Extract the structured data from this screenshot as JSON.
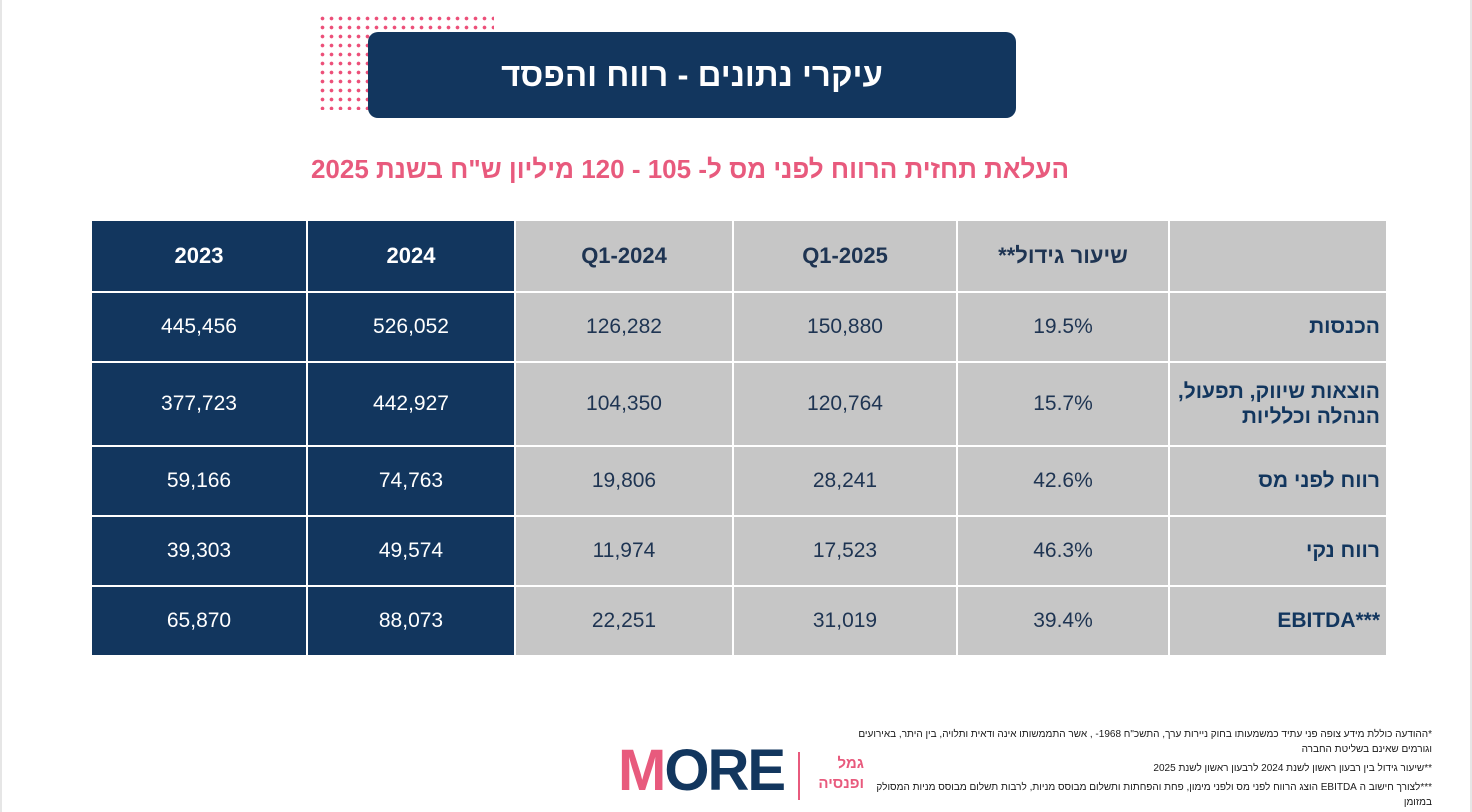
{
  "header": {
    "title": "עיקרי נתונים - רווח והפסד"
  },
  "subtitle": "העלאת תחזית הרווח לפני מס ל- 105 - 120 מיליון ש\"ח בשנת 2025",
  "table": {
    "columns": [
      "",
      "שיעור גידול**",
      "Q1-2025",
      "Q1-2024",
      "2024",
      "2023"
    ],
    "rows": [
      {
        "label": "הכנסות",
        "growth": "19.5%",
        "q1_2025": "150,880",
        "q1_2024": "126,282",
        "y2024": "526,052",
        "y2023": "445,456"
      },
      {
        "label": "הוצאות שיווק, תפעול, הנהלה וכלליות",
        "growth": "15.7%",
        "q1_2025": "120,764",
        "q1_2024": "104,350",
        "y2024": "442,927",
        "y2023": "377,723"
      },
      {
        "label": "רווח לפני מס",
        "growth": "42.6%",
        "q1_2025": "28,241",
        "q1_2024": "19,806",
        "y2024": "74,763",
        "y2023": "59,166"
      },
      {
        "label": "רווח נקי",
        "growth": "46.3%",
        "q1_2025": "17,523",
        "q1_2024": "11,974",
        "y2024": "49,574",
        "y2023": "39,303"
      },
      {
        "label": "EBITDA***",
        "growth": "39.4%",
        "q1_2025": "31,019",
        "q1_2024": "22,251",
        "y2024": "88,073",
        "y2023": "65,870"
      }
    ]
  },
  "footnotes": [
    "*ההודעה כוללת מידע צופה פני עתיד כמשמעותו בחוק ניירות ערך, התשכ\"ח 1968- , אשר התממשותו אינה ודאית ותלויה, בין היתר, באירועים וגורמים שאינם בשליטת החברה",
    "**שיעור גידול בין רבעון ראשון לשנת 2024 לרבעון ראשון לשנת 2025",
    "***לצורך חישוב ה EBITDA הוצג הרווח לפני מס ולפני מימון, פחת והפחתות ותשלום מבוסס מניות, לרבות תשלום מבוסס מניות המסולק במזומן"
  ],
  "logo": {
    "word_first": "M",
    "word_rest": "ORE",
    "sub_line1": "גמל",
    "sub_line2": "ופנסיה"
  },
  "colors": {
    "navy": "#12365e",
    "pink": "#e85a7d",
    "gray": "#c6c6c6"
  }
}
